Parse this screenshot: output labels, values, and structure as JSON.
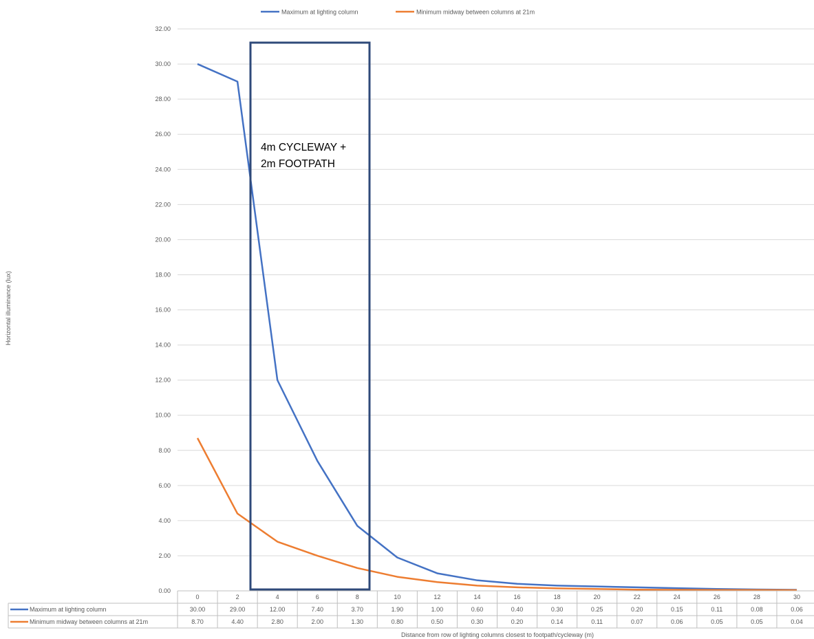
{
  "chart_data": {
    "type": "line",
    "title": "",
    "ylabel": "Horizontal illuminance (lux)",
    "xlabel": "Distance from row of lighting columns closest to footpath/cycleway (m)",
    "ylim": [
      0,
      32
    ],
    "ytick_labels": [
      "0.00",
      "2.00",
      "4.00",
      "6.00",
      "8.00",
      "10.00",
      "12.00",
      "14.00",
      "16.00",
      "18.00",
      "20.00",
      "22.00",
      "24.00",
      "26.00",
      "28.00",
      "30.00",
      "32.00"
    ],
    "categories": [
      "0",
      "2",
      "4",
      "6",
      "8",
      "10",
      "12",
      "14",
      "16",
      "18",
      "20",
      "22",
      "24",
      "26",
      "28",
      "30"
    ],
    "legend_position": "top",
    "grid": true,
    "series": [
      {
        "name": "Maximum at lighting column",
        "color": "#4472C4",
        "values": [
          30.0,
          29.0,
          12.0,
          7.4,
          3.7,
          1.9,
          1.0,
          0.6,
          0.4,
          0.3,
          0.25,
          0.2,
          0.15,
          0.11,
          0.08,
          0.06
        ],
        "labels": [
          "30.00",
          "29.00",
          "12.00",
          "7.40",
          "3.70",
          "1.90",
          "1.00",
          "0.60",
          "0.40",
          "0.30",
          "0.25",
          "0.20",
          "0.15",
          "0.11",
          "0.08",
          "0.06"
        ]
      },
      {
        "name": "Minimum midway between columns at 21m",
        "color": "#ED7D31",
        "values": [
          8.7,
          4.4,
          2.8,
          2.0,
          1.3,
          0.8,
          0.5,
          0.3,
          0.2,
          0.14,
          0.11,
          0.07,
          0.06,
          0.05,
          0.05,
          0.04
        ],
        "labels": [
          "8.70",
          "4.40",
          "2.80",
          "2.00",
          "1.30",
          "0.80",
          "0.50",
          "0.30",
          "0.20",
          "0.14",
          "0.11",
          "0.07",
          "0.06",
          "0.05",
          "0.05",
          "0.04"
        ]
      }
    ],
    "annotation": {
      "lines": [
        "4m CYCLEWAY +",
        "2m FOOTPATH"
      ],
      "color": "#2F4A7A"
    }
  }
}
